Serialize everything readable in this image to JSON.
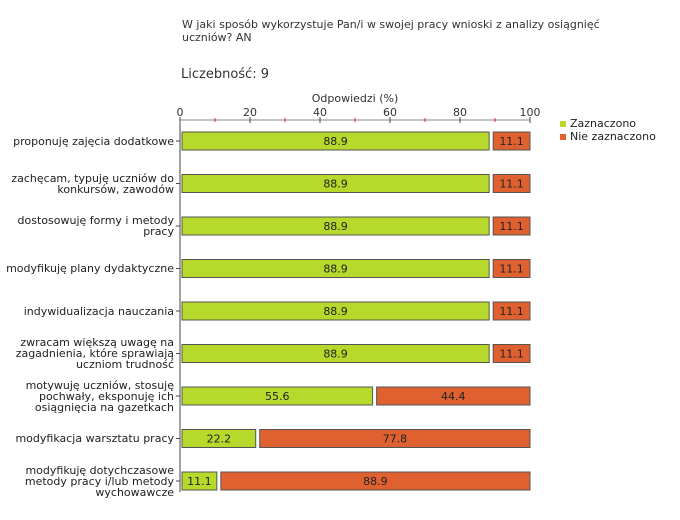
{
  "header": {
    "question": "W jaki sposób wykorzystuje Pan/i w swojej pracy wnioski z analizy osiągnięć uczniów? AN",
    "count_label": "Liczebność:",
    "count_value": "9"
  },
  "chart_data": {
    "type": "bar",
    "orientation": "horizontal",
    "stacked": true,
    "xlabel": "Odpowiedzi (%)",
    "xlim": [
      0,
      100
    ],
    "xticks": [
      "0",
      "20",
      "40",
      "60",
      "80",
      "100"
    ],
    "categories": [
      "proponuję zajęcia dodatkowe",
      "zachęcam, typuję uczniów do konkursów, zawodów",
      "dostosowuję formy i metody pracy",
      "modyfikuję plany dydaktyczne",
      "indywidualizacja nauczania",
      "zwracam większą uwagę na zagadnienia, które sprawiają uczniom trudność",
      "motywuję uczniów, stosuję pochwały, eksponuję ich osiągnięcia na gazetkach",
      "modyfikacja warsztatu pracy",
      "modyfikuję dotychczasowe metody pracy i/lub metody wychowawcze"
    ],
    "series": [
      {
        "name": "Zaznaczono",
        "color": "#b6d92b",
        "values": [
          88.9,
          88.9,
          88.9,
          88.9,
          88.9,
          88.9,
          55.6,
          22.2,
          11.1
        ]
      },
      {
        "name": "Nie zaznaczono",
        "color": "#e06130",
        "values": [
          11.1,
          11.1,
          11.1,
          11.1,
          11.1,
          11.1,
          44.4,
          77.8,
          88.9
        ]
      }
    ]
  }
}
